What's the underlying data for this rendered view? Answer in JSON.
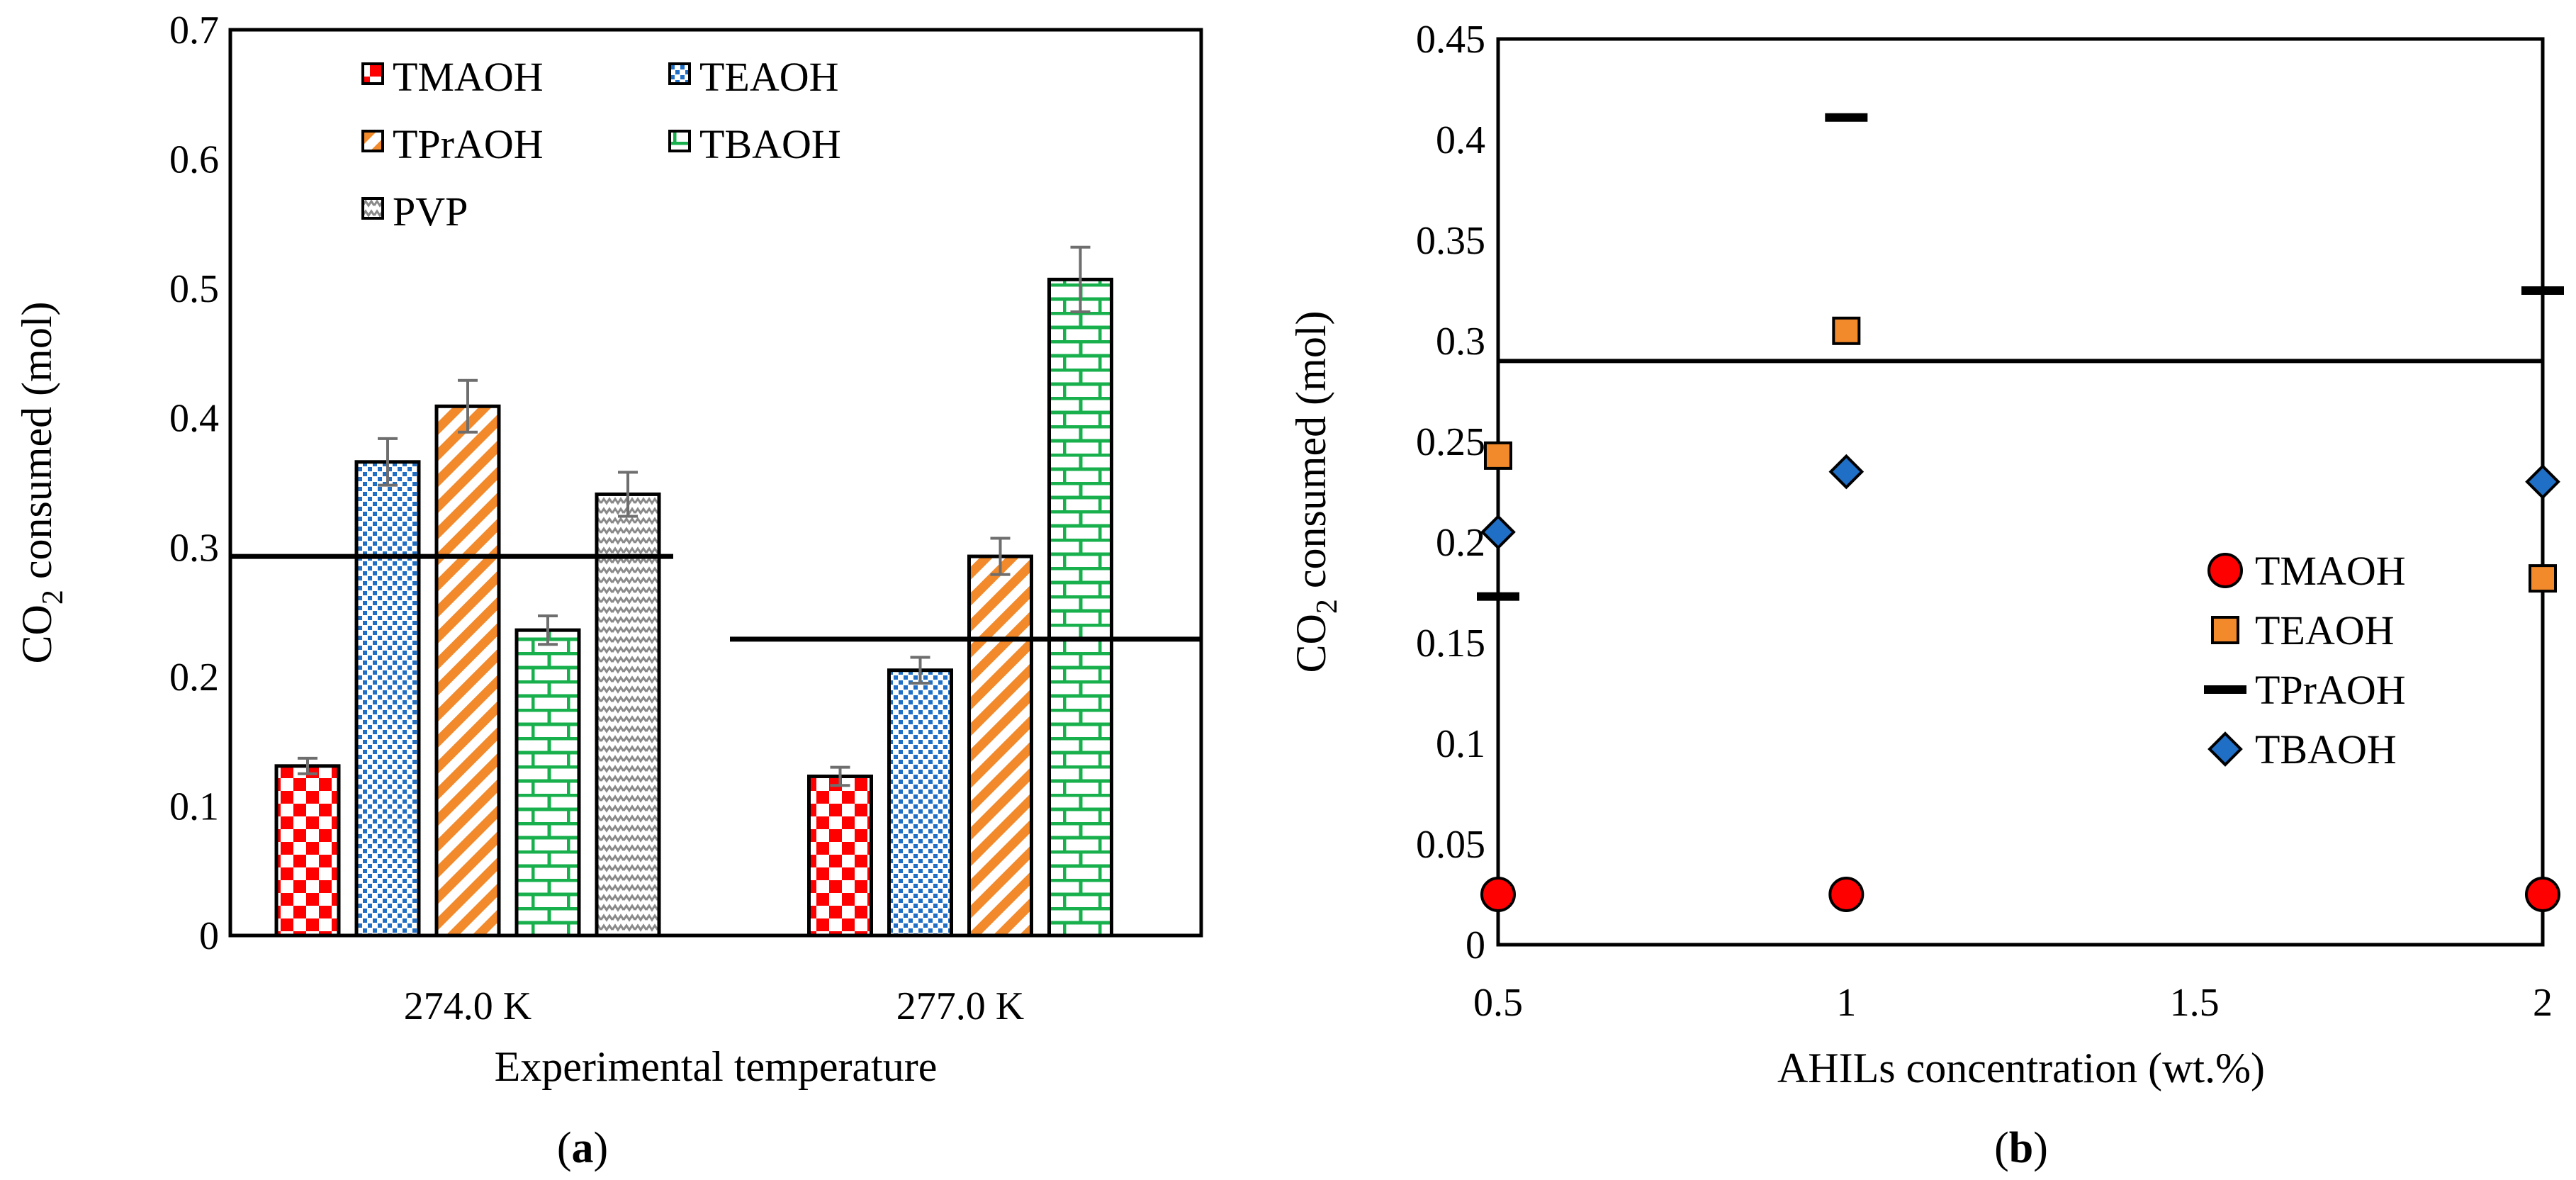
{
  "chart_data": [
    {
      "panel": "a",
      "type": "bar",
      "panel_label": {
        "open": "(",
        "letter": "a",
        "close": ")"
      },
      "xlabel": "Experimental temperature",
      "ylabel": {
        "pre": "CO",
        "sub": "2",
        "post": " consumed (mol)"
      },
      "ylim": [
        0,
        0.7
      ],
      "yticks": [
        0,
        0.1,
        0.2,
        0.3,
        0.4,
        0.5,
        0.6,
        0.7
      ],
      "ytick_labels": [
        "0",
        "0.1",
        "0.2",
        "0.3",
        "0.4",
        "0.5",
        "0.6",
        "0.7"
      ],
      "categories": [
        "274.0 K",
        "277.0 K"
      ],
      "series": [
        {
          "name": "TMAOH",
          "values": [
            0.131,
            0.123
          ],
          "errors": [
            0.006,
            0.007
          ],
          "pattern": "checker",
          "color": "#ff0000"
        },
        {
          "name": "TEAOH",
          "values": [
            0.366,
            0.205
          ],
          "errors": [
            0.018,
            0.01
          ],
          "pattern": "dots",
          "color": "#1f6fc6"
        },
        {
          "name": "TPrAOH",
          "values": [
            0.409,
            0.293
          ],
          "errors": [
            0.02,
            0.014
          ],
          "pattern": "diag",
          "color": "#f28a2c"
        },
        {
          "name": "TBAOH",
          "values": [
            0.236,
            0.507
          ],
          "errors": [
            0.011,
            0.025
          ],
          "pattern": "brick",
          "color": "#17b04c"
        },
        {
          "name": "PVP",
          "values": [
            0.341,
            null
          ],
          "errors": [
            0.017,
            null
          ],
          "pattern": "zigzag",
          "color": "#9a9a9a"
        }
      ],
      "reference_lines": [
        {
          "category": "274.0 K",
          "value": 0.293
        },
        {
          "category": "277.0 K",
          "value": 0.229
        }
      ],
      "legend_position": "top-left"
    },
    {
      "panel": "b",
      "type": "scatter",
      "panel_label": {
        "open": "(",
        "letter": "b",
        "close": ")"
      },
      "xlabel": "AHILs concentration (wt.%)",
      "ylabel": {
        "pre": "CO",
        "sub": "2",
        "post": " consumed (mol)"
      },
      "xlim": [
        0.5,
        2
      ],
      "xticks": [
        0.5,
        1,
        1.5,
        2
      ],
      "xtick_labels": [
        "0.5",
        "1",
        "1.5",
        "2"
      ],
      "ylim": [
        0,
        0.45
      ],
      "yticks": [
        0,
        0.05,
        0.1,
        0.15,
        0.2,
        0.25,
        0.3,
        0.35,
        0.4,
        0.45
      ],
      "ytick_labels": [
        "0",
        "0.05",
        "0.1",
        "0.15",
        "0.2",
        "0.25",
        "0.3",
        "0.35",
        "0.4",
        "0.45"
      ],
      "series": [
        {
          "name": "TMAOH",
          "marker": "circle",
          "color": "#ff0000",
          "x": [
            0.5,
            1,
            2
          ],
          "y": [
            0.025,
            0.025,
            0.025
          ]
        },
        {
          "name": "TEAOH",
          "marker": "square",
          "color": "#f28a2c",
          "x": [
            0.5,
            1,
            2
          ],
          "y": [
            0.243,
            0.305,
            0.182
          ]
        },
        {
          "name": "TPrAOH",
          "marker": "dash",
          "color": "#000000",
          "x": [
            0.5,
            1,
            2
          ],
          "y": [
            0.173,
            0.411,
            0.325
          ]
        },
        {
          "name": "TBAOH",
          "marker": "diamond",
          "color": "#1f6fc6",
          "x": [
            0.5,
            1,
            2
          ],
          "y": [
            0.205,
            0.235,
            0.23
          ]
        }
      ],
      "reference_line": {
        "value": 0.29
      },
      "legend_position": "bottom-right"
    }
  ]
}
